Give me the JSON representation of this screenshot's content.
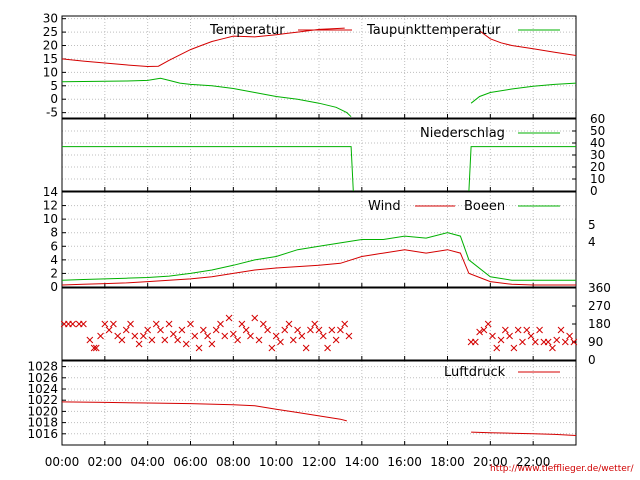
{
  "colors": {
    "red": "#d40000",
    "green": "#00b000",
    "grid": "#bfbfbf",
    "axis": "#000000"
  },
  "chart_data": [
    {
      "type": "line",
      "panel": "temperature",
      "ylim": [
        -7,
        31
      ],
      "yticks": [
        -5,
        0,
        5,
        10,
        15,
        20,
        25,
        30
      ],
      "grid": true,
      "legend": "top",
      "series": [
        {
          "name": "Temperatur",
          "color": "red",
          "segments": [
            [
              [
                0,
                15
              ],
              [
                1,
                14.2
              ],
              [
                2,
                13.5
              ],
              [
                3,
                12.8
              ],
              [
                4,
                12.2
              ],
              [
                4.5,
                12.3
              ],
              [
                5,
                14.5
              ],
              [
                5.5,
                16.5
              ],
              [
                6,
                18.5
              ],
              [
                6.5,
                20
              ],
              [
                7,
                21.5
              ],
              [
                7.5,
                22.5
              ],
              [
                8,
                23.5
              ],
              [
                9,
                23.2
              ],
              [
                10,
                24
              ],
              [
                10.5,
                24.5
              ],
              [
                11,
                25
              ],
              [
                11.5,
                25.5
              ],
              [
                12,
                26
              ],
              [
                12.5,
                26.2
              ],
              [
                13.2,
                26.5
              ]
            ],
            [
              [
                19.5,
                25.5
              ],
              [
                20,
                22.5
              ],
              [
                20.5,
                21
              ],
              [
                21,
                20
              ],
              [
                22,
                18.8
              ],
              [
                23,
                17.5
              ],
              [
                24,
                16.3
              ]
            ]
          ]
        },
        {
          "name": "Taupunkttemperatur",
          "color": "green",
          "segments": [
            [
              [
                0,
                6.5
              ],
              [
                1,
                6.6
              ],
              [
                2,
                6.7
              ],
              [
                3,
                6.8
              ],
              [
                4,
                7
              ],
              [
                4.6,
                7.8
              ],
              [
                5,
                7
              ],
              [
                5.5,
                6
              ],
              [
                6,
                5.5
              ],
              [
                7,
                5
              ],
              [
                8,
                4
              ],
              [
                9,
                2.5
              ],
              [
                10,
                1
              ],
              [
                11,
                0
              ],
              [
                12,
                -1.5
              ],
              [
                12.8,
                -3
              ],
              [
                13.3,
                -5
              ],
              [
                13.5,
                -6.5
              ]
            ],
            [
              [
                19.1,
                -1.5
              ],
              [
                19.5,
                1
              ],
              [
                20,
                2.5
              ],
              [
                21,
                3.8
              ],
              [
                22,
                4.8
              ],
              [
                23,
                5.5
              ],
              [
                24,
                6
              ]
            ]
          ]
        }
      ]
    },
    {
      "type": "line",
      "panel": "precipitation",
      "ylim": [
        0,
        60
      ],
      "yticks": [
        0,
        10,
        20,
        30,
        40,
        50,
        60
      ],
      "series": [
        {
          "name": "Niederschlag",
          "color": "green",
          "segments": [
            [
              [
                0,
                37
              ],
              [
                13.5,
                37
              ],
              [
                13.6,
                0
              ]
            ],
            [
              [
                19.0,
                0
              ],
              [
                19.1,
                37
              ],
              [
                24,
                37
              ]
            ]
          ]
        }
      ]
    },
    {
      "type": "line",
      "panel": "wind",
      "ylim": [
        0,
        14
      ],
      "yticks": [
        0,
        2,
        4,
        6,
        8,
        10,
        12,
        14
      ],
      "yticks_right": [
        "4",
        "5"
      ],
      "series": [
        {
          "name": "Wind",
          "color": "red",
          "segments": [
            [
              [
                0,
                0.3
              ],
              [
                1,
                0.4
              ],
              [
                2,
                0.5
              ],
              [
                3,
                0.6
              ],
              [
                4,
                0.8
              ],
              [
                5,
                1
              ],
              [
                6,
                1.2
              ],
              [
                7,
                1.5
              ],
              [
                8,
                2
              ],
              [
                9,
                2.5
              ],
              [
                10,
                2.8
              ],
              [
                11,
                3
              ],
              [
                12,
                3.2
              ],
              [
                13,
                3.5
              ],
              [
                14,
                4.5
              ],
              [
                15,
                5
              ],
              [
                16,
                5.5
              ],
              [
                17,
                5
              ],
              [
                18,
                5.5
              ],
              [
                18.6,
                5
              ],
              [
                19,
                2
              ],
              [
                20,
                0.8
              ],
              [
                21,
                0.4
              ],
              [
                22,
                0.3
              ],
              [
                23,
                0.3
              ],
              [
                24,
                0.3
              ]
            ]
          ]
        },
        {
          "name": "Boeen",
          "color": "green",
          "segments": [
            [
              [
                0,
                1
              ],
              [
                1,
                1.1
              ],
              [
                2,
                1.2
              ],
              [
                3,
                1.3
              ],
              [
                4,
                1.4
              ],
              [
                5,
                1.6
              ],
              [
                6,
                2
              ],
              [
                7,
                2.5
              ],
              [
                8,
                3.2
              ],
              [
                9,
                4
              ],
              [
                10,
                4.5
              ],
              [
                11,
                5.5
              ],
              [
                12,
                6
              ],
              [
                13,
                6.5
              ],
              [
                14,
                7
              ],
              [
                15,
                7
              ],
              [
                16,
                7.5
              ],
              [
                17,
                7.2
              ],
              [
                18,
                8
              ],
              [
                18.6,
                7.5
              ],
              [
                19,
                4
              ],
              [
                20,
                1.5
              ],
              [
                21,
                1
              ],
              [
                22,
                1
              ],
              [
                23,
                1
              ],
              [
                24,
                1
              ]
            ]
          ]
        }
      ]
    },
    {
      "type": "scatter",
      "panel": "wind-direction",
      "ylim": [
        0,
        360
      ],
      "yticks_right": [
        "0",
        "90",
        "180",
        "270",
        "360"
      ],
      "series": [
        {
          "name": "",
          "color": "red",
          "points": [
            [
              0.1,
              180
            ],
            [
              0.3,
              180
            ],
            [
              0.5,
              180
            ],
            [
              0.8,
              180
            ],
            [
              1.0,
              180
            ],
            [
              1.3,
              100
            ],
            [
              1.5,
              60
            ],
            [
              1.6,
              60
            ],
            [
              1.8,
              120
            ],
            [
              2.0,
              180
            ],
            [
              2.2,
              150
            ],
            [
              2.4,
              180
            ],
            [
              2.6,
              120
            ],
            [
              2.8,
              100
            ],
            [
              3.0,
              150
            ],
            [
              3.2,
              180
            ],
            [
              3.4,
              120
            ],
            [
              3.6,
              80
            ],
            [
              3.8,
              120
            ],
            [
              4.0,
              150
            ],
            [
              4.2,
              100
            ],
            [
              4.4,
              180
            ],
            [
              4.6,
              150
            ],
            [
              4.8,
              100
            ],
            [
              5.0,
              180
            ],
            [
              5.2,
              130
            ],
            [
              5.4,
              100
            ],
            [
              5.6,
              150
            ],
            [
              5.8,
              80
            ],
            [
              6.0,
              180
            ],
            [
              6.2,
              120
            ],
            [
              6.4,
              60
            ],
            [
              6.6,
              150
            ],
            [
              6.8,
              120
            ],
            [
              7.0,
              80
            ],
            [
              7.2,
              150
            ],
            [
              7.4,
              180
            ],
            [
              7.6,
              120
            ],
            [
              7.8,
              210
            ],
            [
              8.0,
              130
            ],
            [
              8.2,
              100
            ],
            [
              8.4,
              180
            ],
            [
              8.6,
              150
            ],
            [
              8.8,
              120
            ],
            [
              9.0,
              210
            ],
            [
              9.2,
              100
            ],
            [
              9.4,
              180
            ],
            [
              9.6,
              150
            ],
            [
              9.8,
              60
            ],
            [
              10.0,
              120
            ],
            [
              10.2,
              90
            ],
            [
              10.4,
              150
            ],
            [
              10.6,
              180
            ],
            [
              10.8,
              100
            ],
            [
              11.0,
              150
            ],
            [
              11.2,
              120
            ],
            [
              11.4,
              60
            ],
            [
              11.6,
              150
            ],
            [
              11.8,
              180
            ],
            [
              12.0,
              150
            ],
            [
              12.2,
              120
            ],
            [
              12.4,
              60
            ],
            [
              12.6,
              150
            ],
            [
              12.8,
              100
            ],
            [
              13.0,
              150
            ],
            [
              13.2,
              180
            ],
            [
              13.4,
              120
            ],
            [
              19.1,
              90
            ],
            [
              19.3,
              90
            ],
            [
              19.5,
              140
            ],
            [
              19.7,
              150
            ],
            [
              19.9,
              180
            ],
            [
              20.1,
              120
            ],
            [
              20.3,
              60
            ],
            [
              20.5,
              100
            ],
            [
              20.7,
              150
            ],
            [
              20.9,
              120
            ],
            [
              21.1,
              60
            ],
            [
              21.3,
              150
            ],
            [
              21.5,
              90
            ],
            [
              21.7,
              150
            ],
            [
              21.9,
              120
            ],
            [
              22.1,
              90
            ],
            [
              22.3,
              150
            ],
            [
              22.5,
              90
            ],
            [
              22.7,
              90
            ],
            [
              22.9,
              60
            ],
            [
              23.1,
              100
            ],
            [
              23.3,
              150
            ],
            [
              23.5,
              90
            ],
            [
              23.7,
              120
            ],
            [
              23.9,
              90
            ]
          ]
        }
      ]
    },
    {
      "type": "line",
      "panel": "pressure",
      "ylim": [
        1014,
        1029
      ],
      "yticks": [
        1016,
        1018,
        1020,
        1022,
        1024,
        1026,
        1028
      ],
      "series": [
        {
          "name": "Luftdruck",
          "color": "red",
          "segments": [
            [
              [
                0,
                1021.7
              ],
              [
                2,
                1021.6
              ],
              [
                4,
                1021.5
              ],
              [
                6,
                1021.4
              ],
              [
                8,
                1021.2
              ],
              [
                9,
                1021.0
              ],
              [
                10,
                1020.4
              ],
              [
                11,
                1019.8
              ],
              [
                12,
                1019.2
              ],
              [
                13,
                1018.6
              ],
              [
                13.3,
                1018.3
              ]
            ],
            [
              [
                19.1,
                1016.3
              ],
              [
                20,
                1016.2
              ],
              [
                21,
                1016.1
              ],
              [
                22,
                1016.0
              ],
              [
                23,
                1015.9
              ],
              [
                24,
                1015.7
              ]
            ]
          ]
        }
      ]
    }
  ],
  "xaxis": {
    "ticks": [
      0,
      2,
      4,
      6,
      8,
      10,
      12,
      14,
      16,
      18,
      20,
      22
    ],
    "labels": [
      "00:00",
      "02:00",
      "04:00",
      "06:00",
      "08:00",
      "10:00",
      "12:00",
      "14:00",
      "16:00",
      "18:00",
      "20:00",
      "22:00"
    ]
  },
  "credit": "http://www.tiefflieger.de/wetter/"
}
